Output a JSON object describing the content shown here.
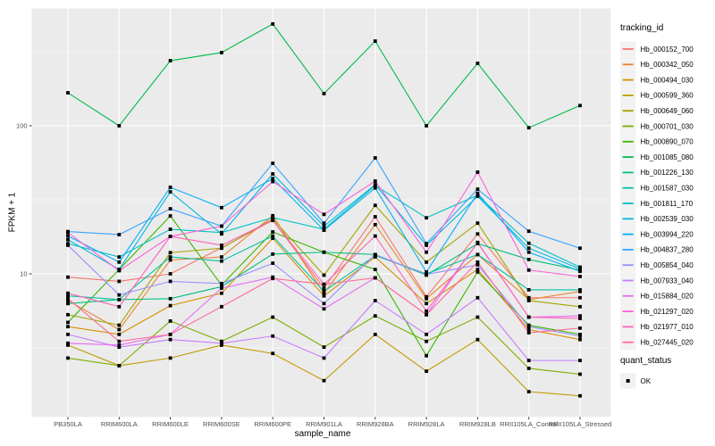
{
  "figure": {
    "background": "#FFFFFF",
    "panel_background": "#EBEBEB",
    "gridline_color": "#FFFFFF",
    "tick_color": "#333333",
    "tick_label_color": "#4D4D4D",
    "legend_key_fill": "#F2F2F2",
    "point_color": "#000000"
  },
  "chart_data": {
    "type": "line",
    "title": "",
    "xlabel": "sample_name",
    "ylabel": "FPKM + 1",
    "y_scale": "log10",
    "grid": true,
    "legend_position": "right",
    "legend_title": "tracking_id",
    "legend2_title": "quant_status",
    "legend2_items": [
      "OK"
    ],
    "y_ticks": [
      {
        "label": "100",
        "value": 100
      },
      {
        "label": "10",
        "value": 10
      }
    ],
    "y_minor_gridlines": [
      316.23,
      31.62,
      3.162
    ],
    "ylim_approx": [
      1.08,
      620
    ],
    "categories": [
      "PB350LA",
      "RRIM600LA",
      "RRIM600LE",
      "RRIM600SE",
      "RRIM600PE",
      "RRIM901LA",
      "RRIM928BA",
      "RRIM928LA",
      "RRIM928LB",
      "RRII105LA_Control",
      "RRII105LA_Stressed"
    ],
    "series": [
      {
        "name": "Hb_000152_700",
        "color": "#F8766D",
        "values": [
          9.5,
          8.9,
          10.0,
          15.0,
          23.0,
          8.0,
          24.3,
          7.0,
          18.6,
          6.9,
          6.9
        ]
      },
      {
        "name": "Hb_000342_050",
        "color": "#EA8331",
        "values": [
          6.6,
          4.2,
          12.4,
          13.0,
          24.7,
          7.4,
          21.5,
          6.8,
          13.5,
          6.7,
          7.6
        ]
      },
      {
        "name": "Hb_000494_030",
        "color": "#D89000",
        "values": [
          4.4,
          3.9,
          6.1,
          7.4,
          17.4,
          7.1,
          13.0,
          6.3,
          10.7,
          4.2,
          3.6
        ]
      },
      {
        "name": "Hb_000599_360",
        "color": "#C09B00",
        "values": [
          3.3,
          2.4,
          2.7,
          3.3,
          2.9,
          1.9,
          3.9,
          2.2,
          3.6,
          1.6,
          1.5
        ]
      },
      {
        "name": "Hb_000649_060",
        "color": "#A3A500",
        "values": [
          5.3,
          4.5,
          13.9,
          14.9,
          23.5,
          9.8,
          29.0,
          12.0,
          22.0,
          6.6,
          6.0
        ]
      },
      {
        "name": "Hb_000701_030",
        "color": "#7CAE00",
        "values": [
          2.7,
          2.4,
          4.8,
          3.5,
          5.1,
          3.2,
          5.2,
          3.5,
          5.1,
          2.3,
          2.1
        ]
      },
      {
        "name": "Hb_000890_070",
        "color": "#39B600",
        "values": [
          4.7,
          10.7,
          24.6,
          8.4,
          19.2,
          14.0,
          10.7,
          2.8,
          10.3,
          4.5,
          3.9
        ]
      },
      {
        "name": "Hb_001085_080",
        "color": "#00BB4E",
        "values": [
          167,
          100,
          275,
          312,
          487,
          165,
          373,
          100,
          264,
          97,
          137
        ]
      },
      {
        "name": "Hb_001226_130",
        "color": "#00BF7D",
        "values": [
          6.3,
          6.7,
          6.8,
          8.2,
          13.6,
          14.0,
          13.5,
          9.8,
          16.0,
          12.5,
          10.6
        ]
      },
      {
        "name": "Hb_001587_030",
        "color": "#00C1A3",
        "values": [
          7.1,
          6.7,
          13.0,
          12.2,
          18.0,
          7.6,
          13.3,
          10.0,
          13.5,
          7.8,
          7.8
        ]
      },
      {
        "name": "Hb_001811_170",
        "color": "#00BFC4",
        "values": [
          16.0,
          13.0,
          20.0,
          19.0,
          24.0,
          20.0,
          39.5,
          23.9,
          34.0,
          16.1,
          11.1
        ]
      },
      {
        "name": "Hb_002539_030",
        "color": "#00BAE0",
        "values": [
          17.0,
          10.7,
          35.8,
          18.6,
          47.3,
          21.0,
          40.0,
          15.6,
          33.4,
          14.9,
          10.8
        ]
      },
      {
        "name": "Hb_003994_220",
        "color": "#00B0F6",
        "values": [
          18.0,
          12.0,
          38.4,
          28.0,
          44.0,
          19.7,
          38.0,
          10.3,
          35.0,
          14.0,
          10.4
        ]
      },
      {
        "name": "Hb_004837_280",
        "color": "#35A2FF",
        "values": [
          19.3,
          18.4,
          27.5,
          21.0,
          55.8,
          22.0,
          60.7,
          16.0,
          37.3,
          19.4,
          14.9
        ]
      },
      {
        "name": "Hb_005854_040",
        "color": "#9590FF",
        "values": [
          15.6,
          7.2,
          8.9,
          8.6,
          11.8,
          6.3,
          13.5,
          9.9,
          11.5,
          4.4,
          3.8
        ]
      },
      {
        "name": "Hb_007933_040",
        "color": "#C77CFF",
        "values": [
          3.9,
          3.2,
          3.6,
          3.4,
          3.8,
          2.7,
          6.6,
          3.9,
          6.9,
          2.6,
          2.6
        ]
      },
      {
        "name": "Hb_015884_020",
        "color": "#E76BF3",
        "values": [
          3.4,
          3.3,
          3.9,
          8.0,
          9.5,
          5.8,
          9.4,
          5.3,
          16.3,
          5.1,
          5.2
        ]
      },
      {
        "name": "Hb_021297_020",
        "color": "#FA62DB",
        "values": [
          19.0,
          10.5,
          17.9,
          21.0,
          42.0,
          25.2,
          42.3,
          14.0,
          48.6,
          10.6,
          9.6
        ]
      },
      {
        "name": "Hb_021977_010",
        "color": "#FF62BC",
        "values": [
          7.4,
          6.0,
          17.9,
          15.6,
          23.0,
          8.5,
          18.0,
          5.6,
          16.2,
          5.1,
          5.0
        ]
      },
      {
        "name": "Hb_027445_020",
        "color": "#FF6A98",
        "values": [
          6.8,
          3.5,
          3.9,
          6.0,
          9.3,
          8.5,
          9.4,
          5.3,
          12.0,
          4.0,
          4.3
        ]
      }
    ]
  }
}
